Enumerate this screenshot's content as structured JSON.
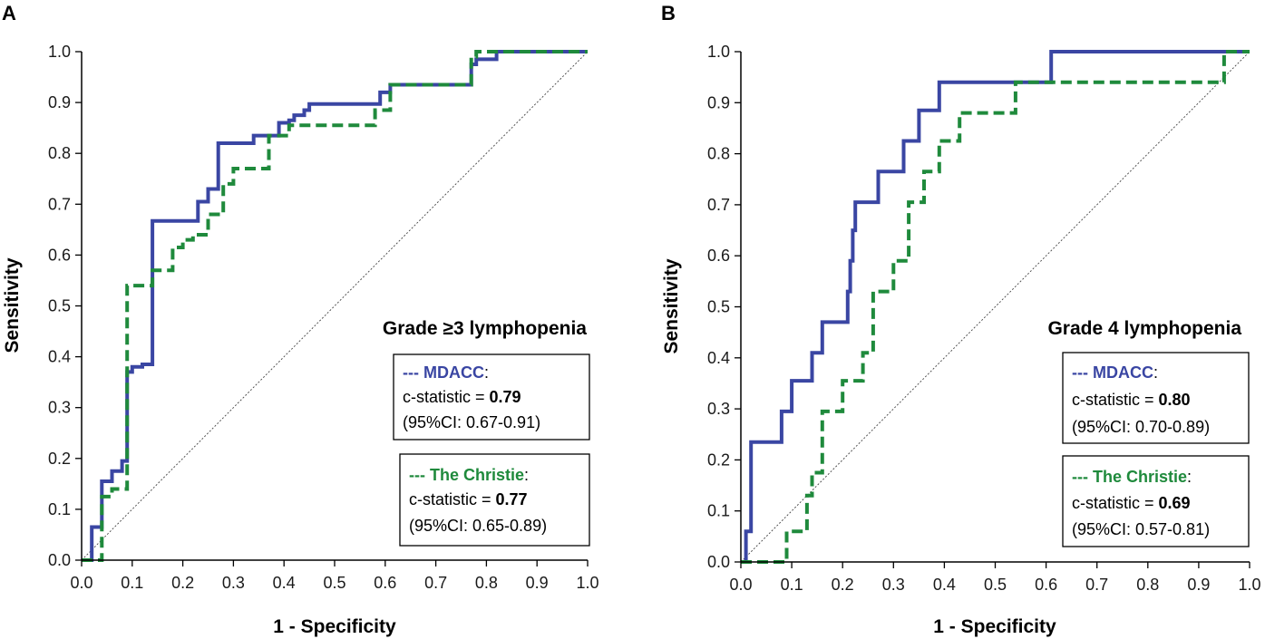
{
  "colors": {
    "mdacc": "#3a46a3",
    "christie": "#1f8a3c",
    "axis": "#000000",
    "diagonal": "#444444"
  },
  "chart_data": [
    {
      "type": "line",
      "panel": "A",
      "title": "Grade ≥3 lymphopenia",
      "xlabel": "1 - Specificity",
      "ylabel": "Sensitivity",
      "xlim": [
        0,
        1
      ],
      "ylim": [
        0,
        1
      ],
      "xticks": [
        "0.0",
        "0.1",
        "0.2",
        "0.3",
        "0.4",
        "0.5",
        "0.6",
        "0.7",
        "0.8",
        "0.9",
        "1.0"
      ],
      "yticks": [
        "0.0",
        "0.1",
        "0.2",
        "0.3",
        "0.4",
        "0.5",
        "0.6",
        "0.7",
        "0.8",
        "0.9",
        "1.0"
      ],
      "reference_line": "diagonal",
      "series": [
        {
          "name": "MDACC",
          "style": "solid",
          "color_key": "mdacc",
          "legend": {
            "prefix": "--- ",
            "name": "MDACC",
            "colon": ":",
            "stat_label": "c-statistic = ",
            "stat": "0.79",
            "ci": "(95%CI: 0.67-0.91)"
          },
          "x": [
            0.0,
            0.02,
            0.02,
            0.04,
            0.04,
            0.06,
            0.06,
            0.08,
            0.08,
            0.09,
            0.09,
            0.1,
            0.1,
            0.12,
            0.12,
            0.14,
            0.14,
            0.23,
            0.23,
            0.25,
            0.25,
            0.27,
            0.27,
            0.34,
            0.34,
            0.39,
            0.39,
            0.41,
            0.41,
            0.42,
            0.42,
            0.44,
            0.44,
            0.45,
            0.45,
            0.59,
            0.59,
            0.61,
            0.61,
            0.77,
            0.77,
            0.78,
            0.78,
            0.82,
            0.82,
            1.0
          ],
          "y": [
            0.0,
            0.0,
            0.065,
            0.065,
            0.155,
            0.155,
            0.175,
            0.175,
            0.195,
            0.195,
            0.37,
            0.37,
            0.38,
            0.38,
            0.385,
            0.385,
            0.667,
            0.667,
            0.705,
            0.705,
            0.73,
            0.73,
            0.82,
            0.82,
            0.835,
            0.835,
            0.86,
            0.86,
            0.865,
            0.865,
            0.875,
            0.875,
            0.885,
            0.885,
            0.897,
            0.897,
            0.92,
            0.92,
            0.935,
            0.935,
            0.975,
            0.975,
            0.985,
            0.985,
            1.0,
            1.0
          ]
        },
        {
          "name": "The Christie",
          "style": "dashed",
          "color_key": "christie",
          "legend": {
            "prefix": "--- ",
            "name": "The Christie",
            "colon": ":",
            "stat_label": "c-statistic = ",
            "stat": "0.77",
            "ci": "(95%CI: 0.65-0.89)"
          },
          "x": [
            0.0,
            0.04,
            0.04,
            0.06,
            0.06,
            0.09,
            0.09,
            0.1,
            0.1,
            0.14,
            0.14,
            0.18,
            0.18,
            0.2,
            0.2,
            0.22,
            0.22,
            0.25,
            0.25,
            0.28,
            0.28,
            0.3,
            0.3,
            0.37,
            0.37,
            0.41,
            0.41,
            0.58,
            0.58,
            0.61,
            0.61,
            0.77,
            0.77,
            0.78,
            0.78,
            1.0
          ],
          "y": [
            0.0,
            0.0,
            0.125,
            0.125,
            0.14,
            0.14,
            0.54,
            0.54,
            0.54,
            0.54,
            0.57,
            0.57,
            0.615,
            0.615,
            0.63,
            0.63,
            0.64,
            0.64,
            0.68,
            0.68,
            0.74,
            0.74,
            0.77,
            0.77,
            0.835,
            0.835,
            0.855,
            0.855,
            0.885,
            0.885,
            0.935,
            0.935,
            0.99,
            0.99,
            1.0,
            1.0
          ]
        }
      ]
    },
    {
      "type": "line",
      "panel": "B",
      "title": "Grade 4 lymphopenia",
      "xlabel": "1 - Specificity",
      "ylabel": "Sensitivity",
      "xlim": [
        0,
        1
      ],
      "ylim": [
        0,
        1
      ],
      "xticks": [
        "0.0",
        "0.1",
        "0.2",
        "0.3",
        "0.4",
        "0.5",
        "0.6",
        "0.7",
        "0.8",
        "0.9",
        "1.0"
      ],
      "yticks": [
        "0.0",
        "0.1",
        "0.2",
        "0.3",
        "0.4",
        "0.5",
        "0.6",
        "0.7",
        "0.8",
        "0.9",
        "1.0"
      ],
      "reference_line": "diagonal",
      "series": [
        {
          "name": "MDACC",
          "style": "solid",
          "color_key": "mdacc",
          "legend": {
            "prefix": "--- ",
            "name": "MDACC",
            "colon": ":",
            "stat_label": "c-statistic = ",
            "stat": "0.80",
            "ci": "(95%CI: 0.70-0.89)"
          },
          "x": [
            0.0,
            0.01,
            0.01,
            0.02,
            0.02,
            0.08,
            0.08,
            0.1,
            0.1,
            0.13,
            0.13,
            0.14,
            0.14,
            0.16,
            0.16,
            0.21,
            0.21,
            0.215,
            0.215,
            0.22,
            0.22,
            0.225,
            0.225,
            0.23,
            0.23,
            0.27,
            0.27,
            0.32,
            0.32,
            0.35,
            0.35,
            0.39,
            0.39,
            0.61,
            0.61,
            1.0
          ],
          "y": [
            0.0,
            0.0,
            0.06,
            0.06,
            0.235,
            0.235,
            0.295,
            0.295,
            0.355,
            0.355,
            0.355,
            0.355,
            0.41,
            0.41,
            0.47,
            0.47,
            0.53,
            0.53,
            0.59,
            0.59,
            0.65,
            0.65,
            0.705,
            0.705,
            0.705,
            0.705,
            0.765,
            0.765,
            0.825,
            0.825,
            0.885,
            0.885,
            0.94,
            0.94,
            1.0,
            1.0
          ]
        },
        {
          "name": "The Christie",
          "style": "dashed",
          "color_key": "christie",
          "legend": {
            "prefix": "--- ",
            "name": "The Christie",
            "colon": ":",
            "stat_label": "c-statistic = ",
            "stat": "0.69",
            "ci": "(95%CI: 0.57-0.81)"
          },
          "x": [
            0.0,
            0.09,
            0.09,
            0.13,
            0.13,
            0.14,
            0.14,
            0.16,
            0.16,
            0.2,
            0.2,
            0.24,
            0.24,
            0.26,
            0.26,
            0.3,
            0.3,
            0.33,
            0.33,
            0.36,
            0.36,
            0.39,
            0.39,
            0.43,
            0.43,
            0.54,
            0.54,
            0.95,
            0.95,
            1.0
          ],
          "y": [
            0.0,
            0.0,
            0.06,
            0.06,
            0.13,
            0.13,
            0.175,
            0.175,
            0.295,
            0.295,
            0.355,
            0.355,
            0.41,
            0.41,
            0.53,
            0.53,
            0.59,
            0.59,
            0.705,
            0.705,
            0.765,
            0.765,
            0.825,
            0.825,
            0.88,
            0.88,
            0.94,
            0.94,
            1.0,
            1.0
          ]
        }
      ]
    }
  ]
}
